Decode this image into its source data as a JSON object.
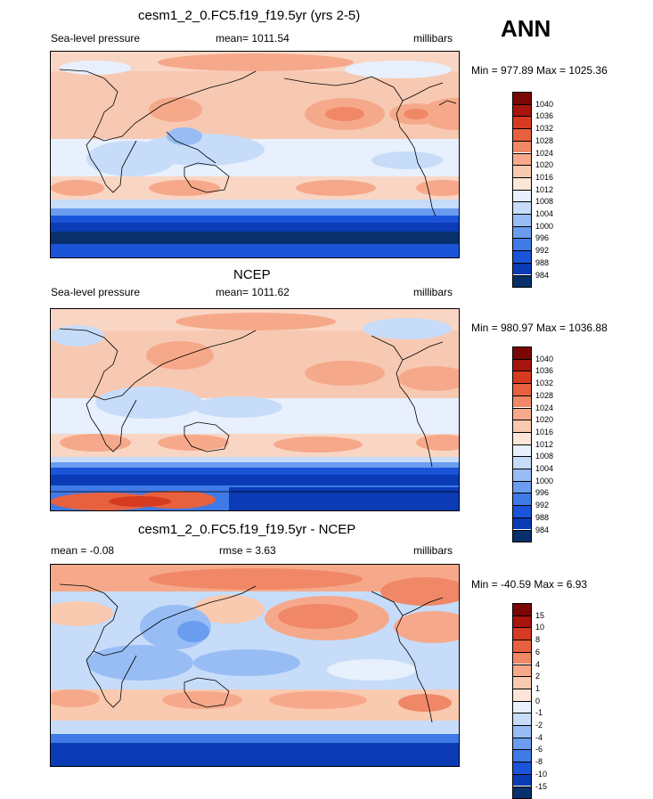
{
  "season_label": "ANN",
  "palette_mean": [
    "#08306b",
    "#0b3bb5",
    "#1a55d9",
    "#3f7ae6",
    "#6a9cf0",
    "#98bdf5",
    "#c6dcf9",
    "#e7f0fc",
    "#fde6d9",
    "#f9c9b0",
    "#f6a98a",
    "#f08867",
    "#e8613f",
    "#d63a21",
    "#a7150e",
    "#7a0706"
  ],
  "palette_diff": [
    "#08306b",
    "#0b3bb5",
    "#1a55d9",
    "#3f7ae6",
    "#6a9cf0",
    "#98bdf5",
    "#c6dcf9",
    "#e7f0fc",
    "#fde6d9",
    "#f9c9b0",
    "#f6a98a",
    "#f08867",
    "#e8613f",
    "#d63a21",
    "#a7150e",
    "#7a0706"
  ],
  "panels": [
    {
      "title": "cesm1_2_0.FC5.f19_f19.5yr (yrs 2-5)",
      "left_label": "Sea-level pressure",
      "mean_label": "mean= 1011.54",
      "units": "millibars",
      "minmax": "Min = 977.89 Max = 1025.36",
      "colorbar_ticks": [
        "1040",
        "1036",
        "1032",
        "1028",
        "1024",
        "1020",
        "1016",
        "1012",
        "1008",
        "1004",
        "1000",
        "996",
        "992",
        "988",
        "984"
      ]
    },
    {
      "title": "NCEP",
      "left_label": "Sea-level pressure",
      "mean_label": "mean= 1011.62",
      "units": "millibars",
      "minmax": "Min = 980.97 Max = 1036.88",
      "colorbar_ticks": [
        "1040",
        "1036",
        "1032",
        "1028",
        "1024",
        "1020",
        "1016",
        "1012",
        "1008",
        "1004",
        "1000",
        "996",
        "992",
        "988",
        "984"
      ]
    },
    {
      "title": "cesm1_2_0.FC5.f19_f19.5yr - NCEP",
      "left_label": "mean =  -0.08",
      "mean_label": "rmse =   3.63",
      "units": "millibars",
      "minmax": "Min = -40.59 Max =   6.93",
      "colorbar_ticks": [
        "15",
        "10",
        "8",
        "6",
        "4",
        "2",
        "1",
        "0",
        "-1",
        "-2",
        "-4",
        "-6",
        "-8",
        "-10",
        "-15"
      ]
    }
  ]
}
